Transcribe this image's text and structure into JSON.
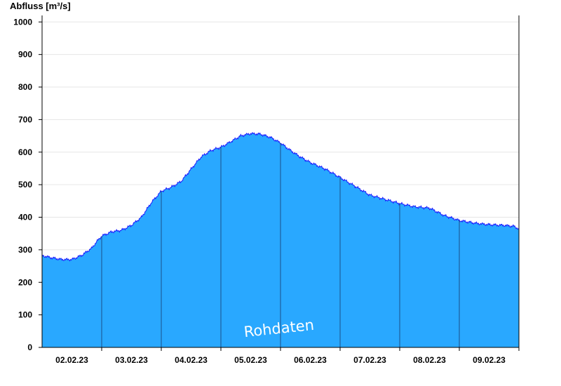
{
  "chart_data": {
    "type": "area",
    "title": "",
    "ylabel": "Abfluss [m³/s]",
    "xlabel": "",
    "ylim": [
      0,
      1020
    ],
    "xlim": [
      "2023-02-01 12:00",
      "2023-02-09 12:00"
    ],
    "yticks": [
      0,
      100,
      200,
      300,
      400,
      500,
      600,
      700,
      800,
      900,
      1000
    ],
    "xtick_labels": [
      "02.02.23",
      "03.02.23",
      "04.02.23",
      "05.02.23",
      "06.02.23",
      "07.02.23",
      "08.02.23",
      "09.02.23"
    ],
    "day_boundaries": [
      "2023-02-02 12:00",
      "2023-02-03 12:00",
      "2023-02-04 12:00",
      "2023-02-05 12:00",
      "2023-02-06 12:00",
      "2023-02-07 12:00",
      "2023-02-08 12:00",
      "2023-02-09 12:00"
    ],
    "grid": true,
    "watermark": "Rohdaten",
    "fill_color": "#29a8ff",
    "line_color": "#1a1aff",
    "series": [
      {
        "x": [
          "2023-02-01 12:00",
          "2023-02-01 16:00",
          "2023-02-01 20:00",
          "2023-02-02 00:00",
          "2023-02-02 04:00",
          "2023-02-02 08:00",
          "2023-02-02 10:00",
          "2023-02-02 12:00",
          "2023-02-02 16:00",
          "2023-02-02 20:00",
          "2023-02-03 00:00",
          "2023-02-03 04:00",
          "2023-02-03 08:00",
          "2023-02-03 12:00",
          "2023-02-03 16:00",
          "2023-02-03 20:00",
          "2023-02-04 00:00",
          "2023-02-04 04:00",
          "2023-02-04 08:00",
          "2023-02-04 12:00",
          "2023-02-04 16:00",
          "2023-02-04 20:00",
          "2023-02-05 00:00",
          "2023-02-05 04:00",
          "2023-02-05 08:00",
          "2023-02-05 12:00",
          "2023-02-05 16:00",
          "2023-02-05 20:00",
          "2023-02-06 00:00",
          "2023-02-06 06:00",
          "2023-02-06 12:00",
          "2023-02-06 18:00",
          "2023-02-07 00:00",
          "2023-02-07 06:00",
          "2023-02-07 12:00",
          "2023-02-07 18:00",
          "2023-02-08 00:00",
          "2023-02-08 06:00",
          "2023-02-08 12:00",
          "2023-02-08 18:00",
          "2023-02-09 00:00",
          "2023-02-09 06:00",
          "2023-02-09 10:00",
          "2023-02-09 12:00"
        ],
        "y": [
          282,
          275,
          270,
          270,
          283,
          305,
          325,
          342,
          355,
          360,
          375,
          400,
          445,
          480,
          492,
          510,
          548,
          585,
          605,
          615,
          632,
          650,
          657,
          655,
          645,
          628,
          605,
          585,
          568,
          548,
          522,
          495,
          468,
          455,
          442,
          432,
          428,
          405,
          390,
          382,
          377,
          375,
          372,
          364
        ]
      }
    ]
  }
}
